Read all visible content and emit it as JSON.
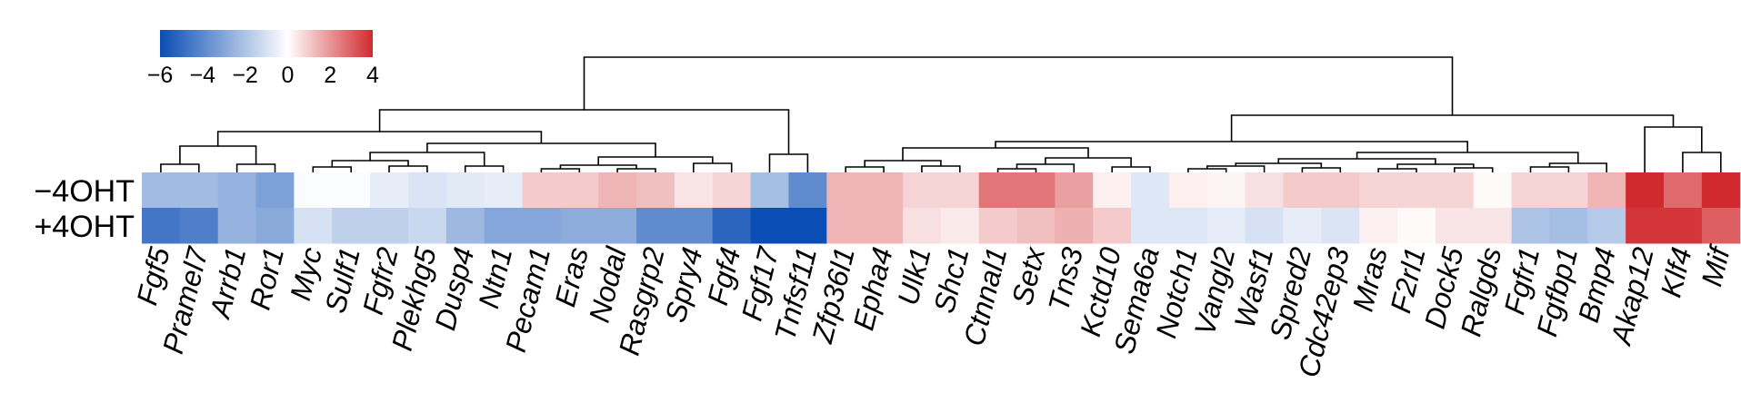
{
  "chart_data": {
    "type": "heatmap",
    "title": "",
    "rows": [
      "−4OHT",
      "+4OHT"
    ],
    "columns": [
      "Fgf5",
      "Pramel7",
      "Arrb1",
      "Ror1",
      "Myc",
      "Sulf1",
      "Fgfr2",
      "Plekhg5",
      "Dusp4",
      "Ntn1",
      "Pecam1",
      "Eras",
      "Nodal",
      "Rasgrp2",
      "Spry4",
      "Fgf4",
      "Fgf17",
      "Tnfsf11",
      "Zfp36l1",
      "Epha4",
      "Ulk1",
      "Shc1",
      "Ctnnal1",
      "Setx",
      "Tns3",
      "Kctd10",
      "Sema6a",
      "Notch1",
      "Vangl2",
      "Wasf1",
      "Spred2",
      "Cdc42ep3",
      "Mras",
      "F2rl1",
      "Dock5",
      "Ralgds",
      "Fgfr1",
      "Fgfbp1",
      "Bmp4",
      "Akap12",
      "Klf4",
      "Mif"
    ],
    "values": [
      [
        -2.3,
        -2.3,
        -2.6,
        -3.2,
        -0.1,
        -0.1,
        -0.6,
        -0.9,
        -0.7,
        -0.6,
        1.0,
        1.0,
        1.4,
        1.2,
        0.5,
        0.8,
        -2.2,
        -3.9,
        1.4,
        1.4,
        0.8,
        0.8,
        2.6,
        2.6,
        1.8,
        0.3,
        -0.8,
        0.3,
        0.2,
        0.6,
        1.0,
        1.0,
        0.8,
        0.8,
        0.8,
        0.1,
        0.8,
        0.8,
        1.4,
        4.0,
        2.8,
        4.5
      ],
      [
        -4.6,
        -4.3,
        -2.6,
        -2.9,
        -1.0,
        -1.6,
        -1.6,
        -1.3,
        -2.4,
        -3.0,
        -3.0,
        -2.8,
        -2.8,
        -3.9,
        -3.9,
        -5.2,
        -6.0,
        -6.0,
        1.4,
        1.4,
        0.6,
        0.4,
        1.0,
        1.2,
        1.5,
        1.0,
        -0.8,
        -0.8,
        -0.6,
        -1.0,
        -0.6,
        -0.9,
        0.3,
        0.1,
        0.5,
        0.5,
        -2.0,
        -2.2,
        -1.8,
        3.8,
        3.8,
        3.0
      ]
    ],
    "colorbar": {
      "ticks": [
        -6,
        -4,
        -2,
        0,
        2,
        4
      ],
      "tick_labels": [
        "−6",
        "−4",
        "−2",
        "0",
        "2",
        "4"
      ],
      "range": [
        -6,
        4
      ]
    },
    "colors": {
      "low": "#0a4db4",
      "mid": "#ffffff",
      "high": "#d12a2e"
    },
    "dendrogram": "column-clustering"
  }
}
